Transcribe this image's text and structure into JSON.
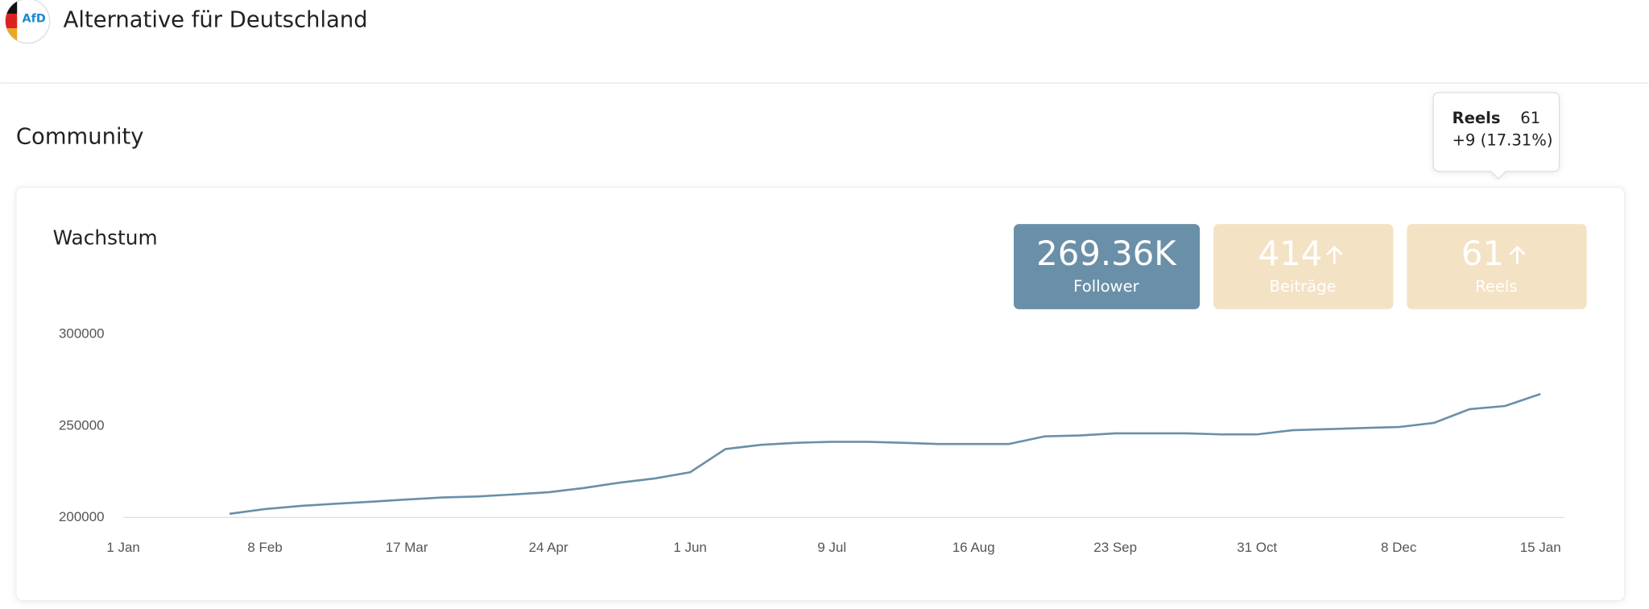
{
  "header": {
    "logo": "AfD",
    "title": "Alternative für Deutschland"
  },
  "section_title": "Community",
  "card": {
    "title": "Wachstum",
    "stats": [
      {
        "value": "269.36K",
        "label": "Follower"
      },
      {
        "value": "414",
        "label": "Beiträge"
      },
      {
        "value": "61",
        "label": "Reels"
      }
    ]
  },
  "tooltip": {
    "name": "Reels",
    "value": "61",
    "change": "+9 (17.31%)"
  },
  "chart_data": {
    "type": "line",
    "categories": [
      "1 Jan",
      null,
      null,
      null,
      "8 Feb",
      null,
      null,
      null,
      "17 Mar",
      null,
      null,
      null,
      "24 Apr",
      null,
      null,
      null,
      "1 Jun",
      null,
      null,
      null,
      "9 Jul",
      null,
      null,
      null,
      "16 Aug",
      null,
      null,
      null,
      "23 Sep",
      null,
      null,
      null,
      "31 Oct",
      null,
      null,
      null,
      "8 Dec",
      null,
      null,
      null,
      "15 Jan"
    ],
    "values": [
      null,
      null,
      null,
      202000,
      204600,
      206300,
      207500,
      208600,
      209800,
      210900,
      211500,
      212600,
      213800,
      216100,
      219000,
      221300,
      224700,
      237400,
      239700,
      240800,
      241400,
      241400,
      240800,
      240200,
      240200,
      240200,
      244300,
      244800,
      246000,
      246000,
      246000,
      245400,
      245400,
      247700,
      248300,
      248900,
      249400,
      251700,
      259200,
      260900,
      267500
    ],
    "color": "#6a8fa8",
    "ylim": [
      200000,
      300000
    ],
    "yticks": [
      200000,
      250000,
      300000
    ],
    "grid": false
  }
}
